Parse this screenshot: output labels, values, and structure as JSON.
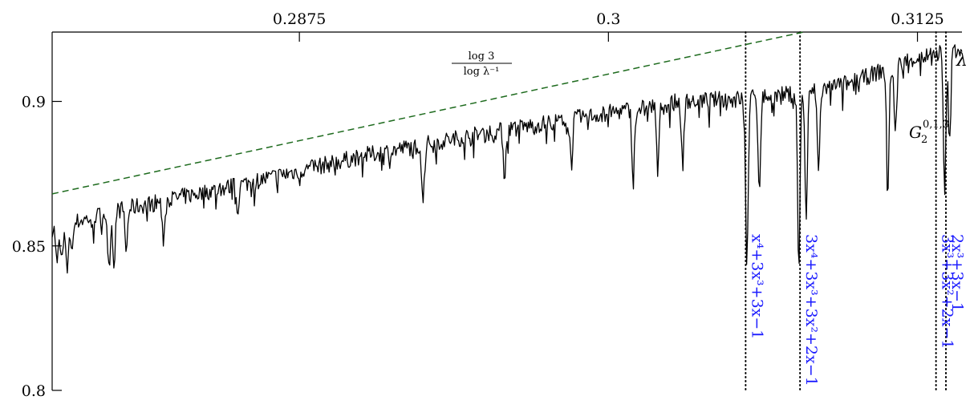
{
  "chart_data": {
    "type": "line",
    "title": "",
    "xlabel": "λ",
    "ylabel": "",
    "xlim": [
      0.2775,
      0.3143
    ],
    "ylim": [
      0.8,
      0.924
    ],
    "x_ticks": [
      {
        "value": 0.2875,
        "label": "0.2875"
      },
      {
        "value": 0.3,
        "label": "0.3"
      },
      {
        "value": 0.3125,
        "label": "0.3125"
      }
    ],
    "y_ticks": [
      {
        "value": 0.8,
        "label": "0.8"
      },
      {
        "value": 0.85,
        "label": "0.85"
      },
      {
        "value": 0.9,
        "label": "0.9"
      }
    ],
    "grid": false,
    "legend": "none",
    "series": [
      {
        "color": "#000000",
        "style": "solid",
        "noise_seed": 7,
        "baseline": [
          [
            0.2775,
            0.856
          ],
          [
            0.28,
            0.862
          ],
          [
            0.285,
            0.871
          ],
          [
            0.29,
            0.881
          ],
          [
            0.295,
            0.889
          ],
          [
            0.3,
            0.896
          ],
          [
            0.303,
            0.9
          ],
          [
            0.3055,
            0.901
          ],
          [
            0.308,
            0.903
          ],
          [
            0.31,
            0.907
          ],
          [
            0.312,
            0.914
          ],
          [
            0.314,
            0.918
          ]
        ],
        "dips": [
          [
            0.2777,
            0.843
          ],
          [
            0.2779,
            0.845
          ],
          [
            0.2781,
            0.841
          ],
          [
            0.2783,
            0.848
          ],
          [
            0.2798,
            0.843
          ],
          [
            0.28,
            0.844
          ],
          [
            0.2805,
            0.848
          ],
          [
            0.282,
            0.852
          ],
          [
            0.285,
            0.862
          ],
          [
            0.2925,
            0.866
          ],
          [
            0.2958,
            0.874
          ],
          [
            0.2985,
            0.878
          ],
          [
            0.301,
            0.872
          ],
          [
            0.302,
            0.875
          ],
          [
            0.303,
            0.878
          ],
          [
            0.3056,
            0.842
          ],
          [
            0.3061,
            0.87
          ],
          [
            0.3077,
            0.843
          ],
          [
            0.308,
            0.86
          ],
          [
            0.3085,
            0.875
          ],
          [
            0.3113,
            0.867
          ],
          [
            0.3116,
            0.888
          ],
          [
            0.3136,
            0.866
          ],
          [
            0.3138,
            0.885
          ]
        ]
      },
      {
        "color": "#1e6b1e",
        "style": "dashed",
        "label": "log 3 / log λ⁻¹",
        "points": [
          [
            0.2775,
            0.868
          ],
          [
            0.308,
            0.9242
          ]
        ]
      }
    ],
    "annotations": [
      {
        "x": 0.30555,
        "label": "x⁴+3x³+3x−1"
      },
      {
        "x": 0.30775,
        "label": "3x⁴+3x³+3x²+2x−1"
      },
      {
        "x": 0.31325,
        "label": "3x³+3x²+2x−1"
      },
      {
        "x": 0.3156,
        "label": "2x³+3x−1"
      }
    ]
  },
  "labels": {
    "x_axis": "λ",
    "frac_num": "log 3",
    "frac_den": "log λ⁻¹",
    "g_main": "G",
    "g_sub": "2",
    "g_sup": "0,1,3"
  }
}
